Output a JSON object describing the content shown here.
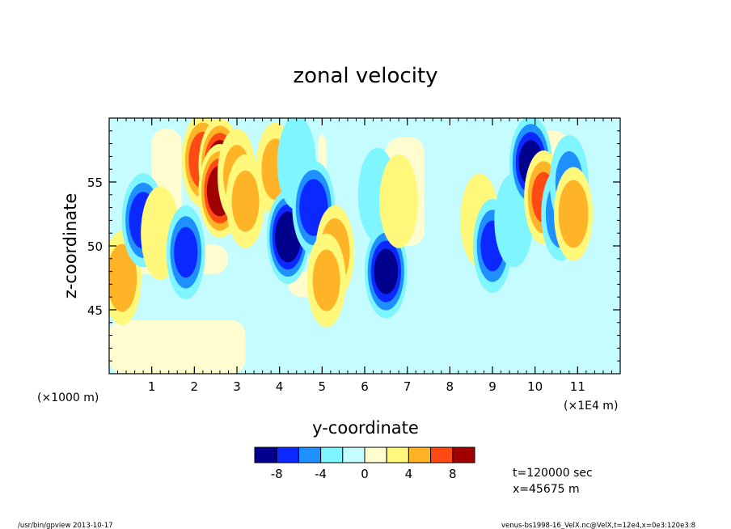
{
  "chart_data": {
    "type": "heatmap",
    "title": "zonal velocity",
    "xlabel": "y-coordinate",
    "ylabel": "z-coordinate",
    "x_unit_left": "(×1000 m)",
    "x_unit_right": "(×1E4 m)",
    "xlim": [
      0,
      12
    ],
    "ylim": [
      40,
      60
    ],
    "x_ticks": [
      1,
      2,
      3,
      4,
      5,
      6,
      7,
      8,
      9,
      10,
      11
    ],
    "y_ticks": [
      45,
      50,
      55
    ],
    "colorbar": {
      "levels": [
        -10,
        -8,
        -6,
        -4,
        -2,
        0,
        2,
        4,
        6,
        8,
        10
      ],
      "colors": [
        "#00008c",
        "#0a28ff",
        "#1e90ff",
        "#7ff5ff",
        "#c4fcff",
        "#fffdd0",
        "#fff87a",
        "#ffb428",
        "#ff4a14",
        "#a00000"
      ],
      "tick_labels": [
        "-8",
        "-4",
        "0",
        "4",
        "8"
      ]
    },
    "features": [
      {
        "y": 0.3,
        "z": 47.5,
        "value": 5
      },
      {
        "y": 0.8,
        "z": 52.0,
        "value": -7
      },
      {
        "y": 1.2,
        "z": 51.0,
        "value": 3
      },
      {
        "y": 1.8,
        "z": 49.5,
        "value": -6
      },
      {
        "y": 2.2,
        "z": 56.7,
        "value": 7
      },
      {
        "y": 2.6,
        "z": 56.3,
        "value": 9
      },
      {
        "y": 2.6,
        "z": 54.3,
        "value": 9
      },
      {
        "y": 3.0,
        "z": 55.5,
        "value": 4
      },
      {
        "y": 3.2,
        "z": 53.5,
        "value": 4
      },
      {
        "y": 3.9,
        "z": 56.0,
        "value": 4
      },
      {
        "y": 4.2,
        "z": 50.7,
        "value": -9
      },
      {
        "y": 4.4,
        "z": 56.5,
        "value": -3
      },
      {
        "y": 4.8,
        "z": 53.0,
        "value": -7
      },
      {
        "y": 5.3,
        "z": 49.5,
        "value": 5
      },
      {
        "y": 5.1,
        "z": 47.3,
        "value": 4
      },
      {
        "y": 6.3,
        "z": 54.0,
        "value": -3
      },
      {
        "y": 6.5,
        "z": 48.0,
        "value": -8
      },
      {
        "y": 6.8,
        "z": 53.5,
        "value": 3
      },
      {
        "y": 8.7,
        "z": 52.0,
        "value": 3
      },
      {
        "y": 9.0,
        "z": 50.0,
        "value": -6
      },
      {
        "y": 9.5,
        "z": 52.0,
        "value": -3
      },
      {
        "y": 9.9,
        "z": 56.5,
        "value": -8
      },
      {
        "y": 10.2,
        "z": 53.8,
        "value": 6
      },
      {
        "y": 10.6,
        "z": 52.5,
        "value": -5
      },
      {
        "y": 10.8,
        "z": 55.0,
        "value": -4
      },
      {
        "y": 10.9,
        "z": 52.5,
        "value": 5
      }
    ]
  },
  "info": {
    "time": "t=120000 sec",
    "position": "x=45675 m"
  },
  "footer": {
    "left": "/usr/bin/gpview   2013-10-17",
    "right": "venus-bs1998-16_VelX.nc@VelX,t=12e4,x=0e3:120e3:8"
  }
}
